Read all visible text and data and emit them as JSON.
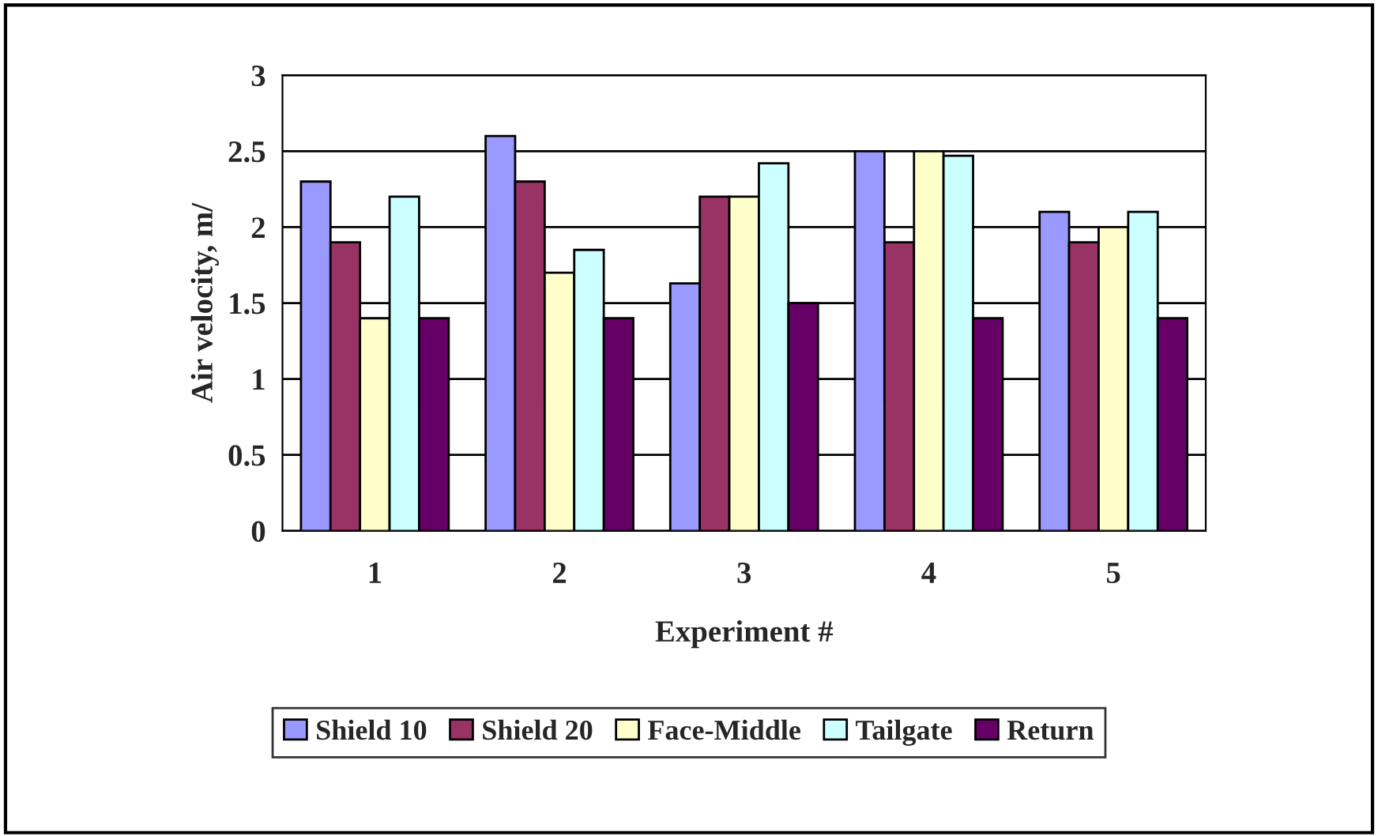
{
  "chart_data": {
    "type": "bar",
    "xlabel": "Experiment #",
    "ylabel": "Air velocity, m/",
    "categories": [
      "1",
      "2",
      "3",
      "4",
      "5"
    ],
    "series": [
      {
        "name": "Shield 10",
        "color": "#9999ff",
        "values": [
          2.3,
          2.6,
          1.63,
          2.5,
          2.1
        ]
      },
      {
        "name": "Shield 20",
        "color": "#993366",
        "values": [
          1.9,
          2.3,
          2.2,
          1.9,
          1.9
        ]
      },
      {
        "name": "Face-Middle",
        "color": "#ffffcc",
        "values": [
          1.4,
          1.7,
          2.2,
          2.5,
          2.0
        ]
      },
      {
        "name": "Tailgate",
        "color": "#ccffff",
        "values": [
          2.2,
          1.85,
          2.42,
          2.47,
          2.1
        ]
      },
      {
        "name": "Return",
        "color": "#660066",
        "values": [
          1.4,
          1.4,
          1.5,
          1.4,
          1.4
        ]
      }
    ],
    "ylim": [
      0,
      3
    ],
    "yticks": [
      0,
      0.5,
      1,
      1.5,
      2,
      2.5,
      3
    ],
    "grid": "y",
    "legend": "bottom"
  }
}
